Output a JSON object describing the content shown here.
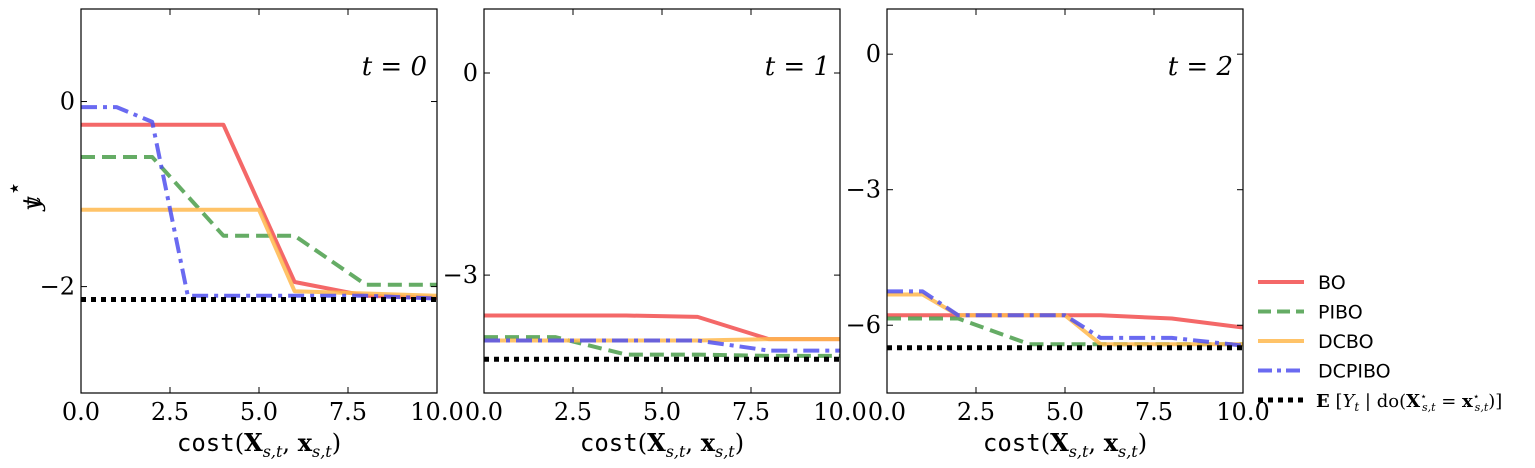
{
  "chart_data": [
    {
      "type": "line",
      "annotation": "t = 0",
      "xlabel": "cost(X_{s,t}, x_{s,t})",
      "ylabel": "y*_t",
      "xlim": [
        0,
        10
      ],
      "ylim": [
        -3.15,
        1.0
      ],
      "x_ticks": [
        0.0,
        2.5,
        5.0,
        7.5,
        10.0
      ],
      "x_tick_labels": [
        "0.0",
        "2.5",
        "5.0",
        "7.5",
        "10.0"
      ],
      "y_ticks": [
        0,
        -2
      ],
      "y_tick_labels": [
        "0",
        "−2"
      ],
      "series": [
        {
          "name": "BO",
          "x": [
            0,
            4,
            6,
            8,
            10
          ],
          "y": [
            -0.25,
            -0.25,
            -1.95,
            -2.1,
            -2.12
          ]
        },
        {
          "name": "PIBO",
          "x": [
            0,
            2,
            4,
            6,
            8,
            10
          ],
          "y": [
            -0.6,
            -0.6,
            -1.45,
            -1.45,
            -1.98,
            -1.98
          ]
        },
        {
          "name": "DCBO",
          "x": [
            0,
            5,
            6,
            10
          ],
          "y": [
            -1.17,
            -1.17,
            -2.05,
            -2.1
          ]
        },
        {
          "name": "DCPIBO",
          "x": [
            0,
            1,
            2,
            3,
            8,
            10
          ],
          "y": [
            -0.06,
            -0.06,
            -0.22,
            -2.1,
            -2.1,
            -2.13
          ]
        },
        {
          "name": "E[Y_t | do(X*_{s,t} = x*_{s,t})]",
          "x": [
            0,
            10
          ],
          "y": [
            -2.14,
            -2.14
          ]
        }
      ]
    },
    {
      "type": "line",
      "annotation": "t = 1",
      "xlabel": "cost(X_{s,t}, x_{s,t})",
      "ylabel": "",
      "xlim": [
        0,
        10
      ],
      "ylim": [
        -4.75,
        0.95
      ],
      "x_ticks": [
        0.0,
        2.5,
        5.0,
        7.5,
        10.0
      ],
      "x_tick_labels": [
        "0.0",
        "2.5",
        "5.0",
        "7.5",
        "10.0"
      ],
      "y_ticks": [
        0,
        -3
      ],
      "y_tick_labels": [
        "0",
        "−3"
      ],
      "series": [
        {
          "name": "BO",
          "x": [
            0,
            4,
            6,
            8,
            10
          ],
          "y": [
            -3.6,
            -3.6,
            -3.62,
            -3.95,
            -3.95
          ]
        },
        {
          "name": "PIBO",
          "x": [
            0,
            2,
            4,
            6,
            8,
            10
          ],
          "y": [
            -3.92,
            -3.92,
            -4.18,
            -4.18,
            -4.2,
            -4.2
          ]
        },
        {
          "name": "DCBO",
          "x": [
            0,
            6,
            8,
            10
          ],
          "y": [
            -3.97,
            -3.97,
            -3.95,
            -3.95
          ]
        },
        {
          "name": "DCPIBO",
          "x": [
            0,
            6,
            8,
            10
          ],
          "y": [
            -3.97,
            -3.97,
            -4.12,
            -4.12
          ]
        },
        {
          "name": "E[Y_t | do(X*_{s,t} = x*_{s,t})]",
          "x": [
            0,
            10
          ],
          "y": [
            -4.25,
            -4.25
          ]
        }
      ]
    },
    {
      "type": "line",
      "annotation": "t = 2",
      "xlabel": "cost(X_{s,t}, x_{s,t})",
      "ylabel": "",
      "xlim": [
        0,
        10
      ],
      "ylim": [
        -7.5,
        1.0
      ],
      "x_ticks": [
        0.0,
        2.5,
        5.0,
        7.5,
        10.0
      ],
      "x_tick_labels": [
        "0.0",
        "2.5",
        "5.0",
        "7.5",
        "10.0"
      ],
      "y_ticks": [
        0,
        -3,
        -6
      ],
      "y_tick_labels": [
        "0",
        "−3",
        "−6"
      ],
      "series": [
        {
          "name": "BO",
          "x": [
            0,
            6,
            8,
            10
          ],
          "y": [
            -5.78,
            -5.78,
            -5.85,
            -6.05
          ]
        },
        {
          "name": "PIBO",
          "x": [
            0,
            2,
            4,
            6,
            8,
            10
          ],
          "y": [
            -5.85,
            -5.85,
            -6.42,
            -6.42,
            -6.42,
            -6.42
          ]
        },
        {
          "name": "DCBO",
          "x": [
            0,
            1,
            2,
            5,
            6,
            10
          ],
          "y": [
            -5.32,
            -5.32,
            -5.78,
            -5.78,
            -6.42,
            -6.42
          ]
        },
        {
          "name": "DCPIBO",
          "x": [
            0,
            1,
            2,
            5,
            6,
            8,
            10
          ],
          "y": [
            -5.25,
            -5.25,
            -5.78,
            -5.78,
            -6.28,
            -6.28,
            -6.45
          ]
        },
        {
          "name": "E[Y_t | do(X*_{s,t} = x*_{s,t})]",
          "x": [
            0,
            10
          ],
          "y": [
            -6.5,
            -6.5
          ]
        }
      ]
    }
  ],
  "legend": {
    "placement": "lower-right outside",
    "items": [
      {
        "key": "BO",
        "label": "BO",
        "color": "#f24e4e",
        "style": "solid"
      },
      {
        "key": "PIBO",
        "label": "PIBO",
        "color": "#4a9e4a",
        "style": "dashed"
      },
      {
        "key": "DCBO",
        "label": "DCBO",
        "color": "#ffb84d",
        "style": "solid"
      },
      {
        "key": "DCPIBO",
        "label": "DCPIBO",
        "color": "#5050ee",
        "style": "dashdot"
      },
      {
        "key": "GT",
        "label": "E[Y_t | do(X*_{s,t} = x*_{s,t})]",
        "color": "#000000",
        "style": "dotted"
      }
    ]
  }
}
